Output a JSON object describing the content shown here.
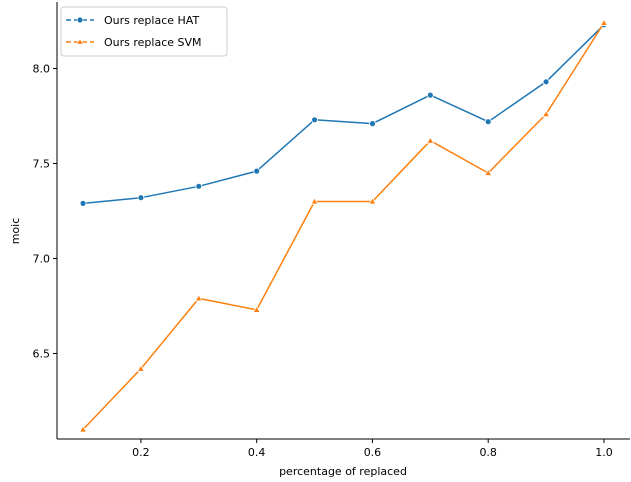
{
  "chart_data": {
    "type": "line",
    "title": "",
    "xlabel": "percentage of replaced",
    "ylabel": "moic",
    "xlim": [
      0.055,
      1.045
    ],
    "ylim": [
      6.05,
      8.35
    ],
    "xticks": [
      0.2,
      0.4,
      0.6,
      0.8,
      1.0
    ],
    "xtick_labels": [
      "0.2",
      "0.4",
      "0.6",
      "0.8",
      "1.0"
    ],
    "yticks": [
      6.5,
      7.0,
      7.5,
      8.0
    ],
    "ytick_labels": [
      "6.5",
      "7.0",
      "7.5",
      "8.0"
    ],
    "grid": false,
    "legend_position": "upper-left",
    "x": [
      0.1,
      0.2,
      0.3,
      0.4,
      0.5,
      0.6,
      0.7,
      0.8,
      0.9,
      1.0
    ],
    "series": [
      {
        "name": "Ours replace HAT",
        "color": "#1f77b4",
        "marker": "circle",
        "values": [
          7.29,
          7.32,
          7.38,
          7.46,
          7.73,
          7.71,
          7.86,
          7.72,
          7.93,
          8.23
        ]
      },
      {
        "name": "Ours replace SVM",
        "color": "#ff7f0e",
        "marker": "triangle",
        "values": [
          6.1,
          6.42,
          6.79,
          6.73,
          7.3,
          7.3,
          7.62,
          7.45,
          7.76,
          8.24
        ]
      }
    ]
  }
}
